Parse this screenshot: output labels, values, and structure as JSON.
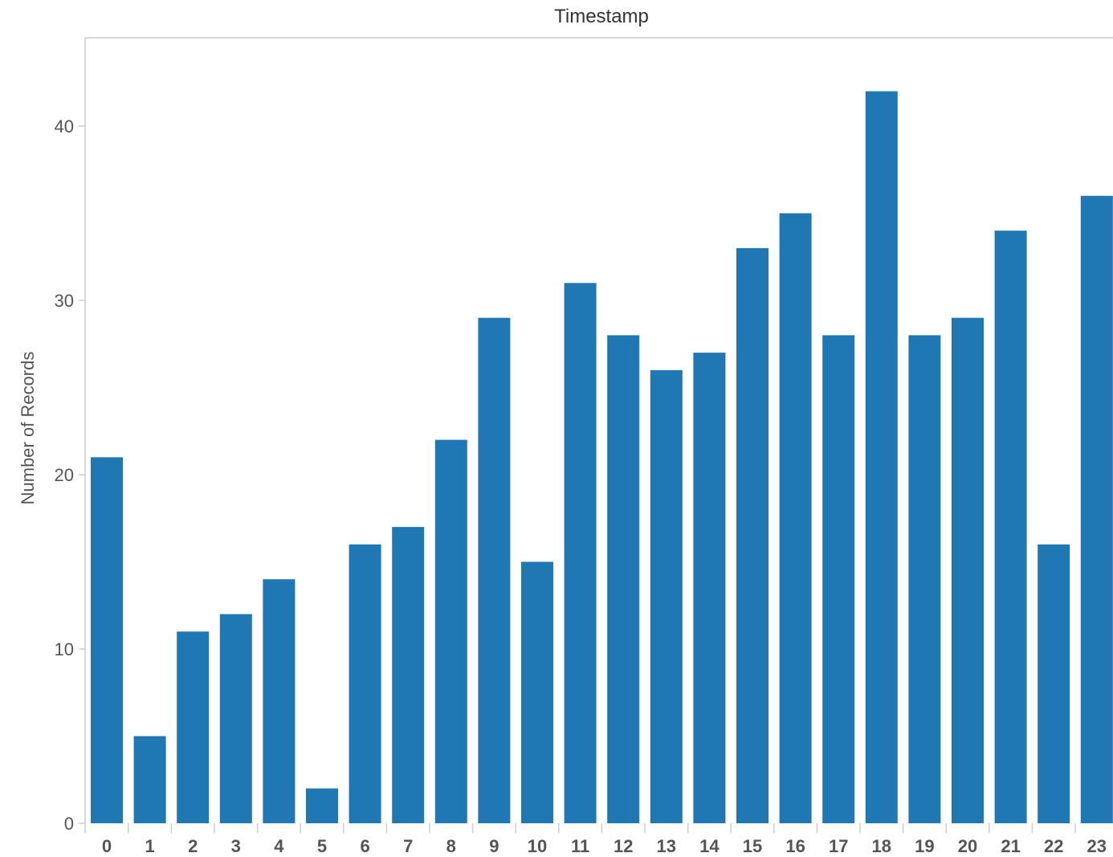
{
  "chart_data": {
    "type": "bar",
    "title": "Timestamp",
    "xlabel": "",
    "ylabel": "Number of Records",
    "categories": [
      "0",
      "1",
      "2",
      "3",
      "4",
      "5",
      "6",
      "7",
      "8",
      "9",
      "10",
      "11",
      "12",
      "13",
      "14",
      "15",
      "16",
      "17",
      "18",
      "19",
      "20",
      "21",
      "22",
      "23"
    ],
    "values": [
      21,
      5,
      11,
      12,
      14,
      2,
      16,
      17,
      22,
      29,
      15,
      31,
      28,
      26,
      27,
      33,
      35,
      28,
      42,
      28,
      29,
      34,
      16,
      36
    ],
    "yticks": [
      "0",
      "10",
      "20",
      "30",
      "40"
    ],
    "ylim": [
      0,
      44
    ],
    "grid": false,
    "colors": {
      "bar": "#1f77b4",
      "axis": "#cccccc",
      "text": "#555555"
    }
  }
}
